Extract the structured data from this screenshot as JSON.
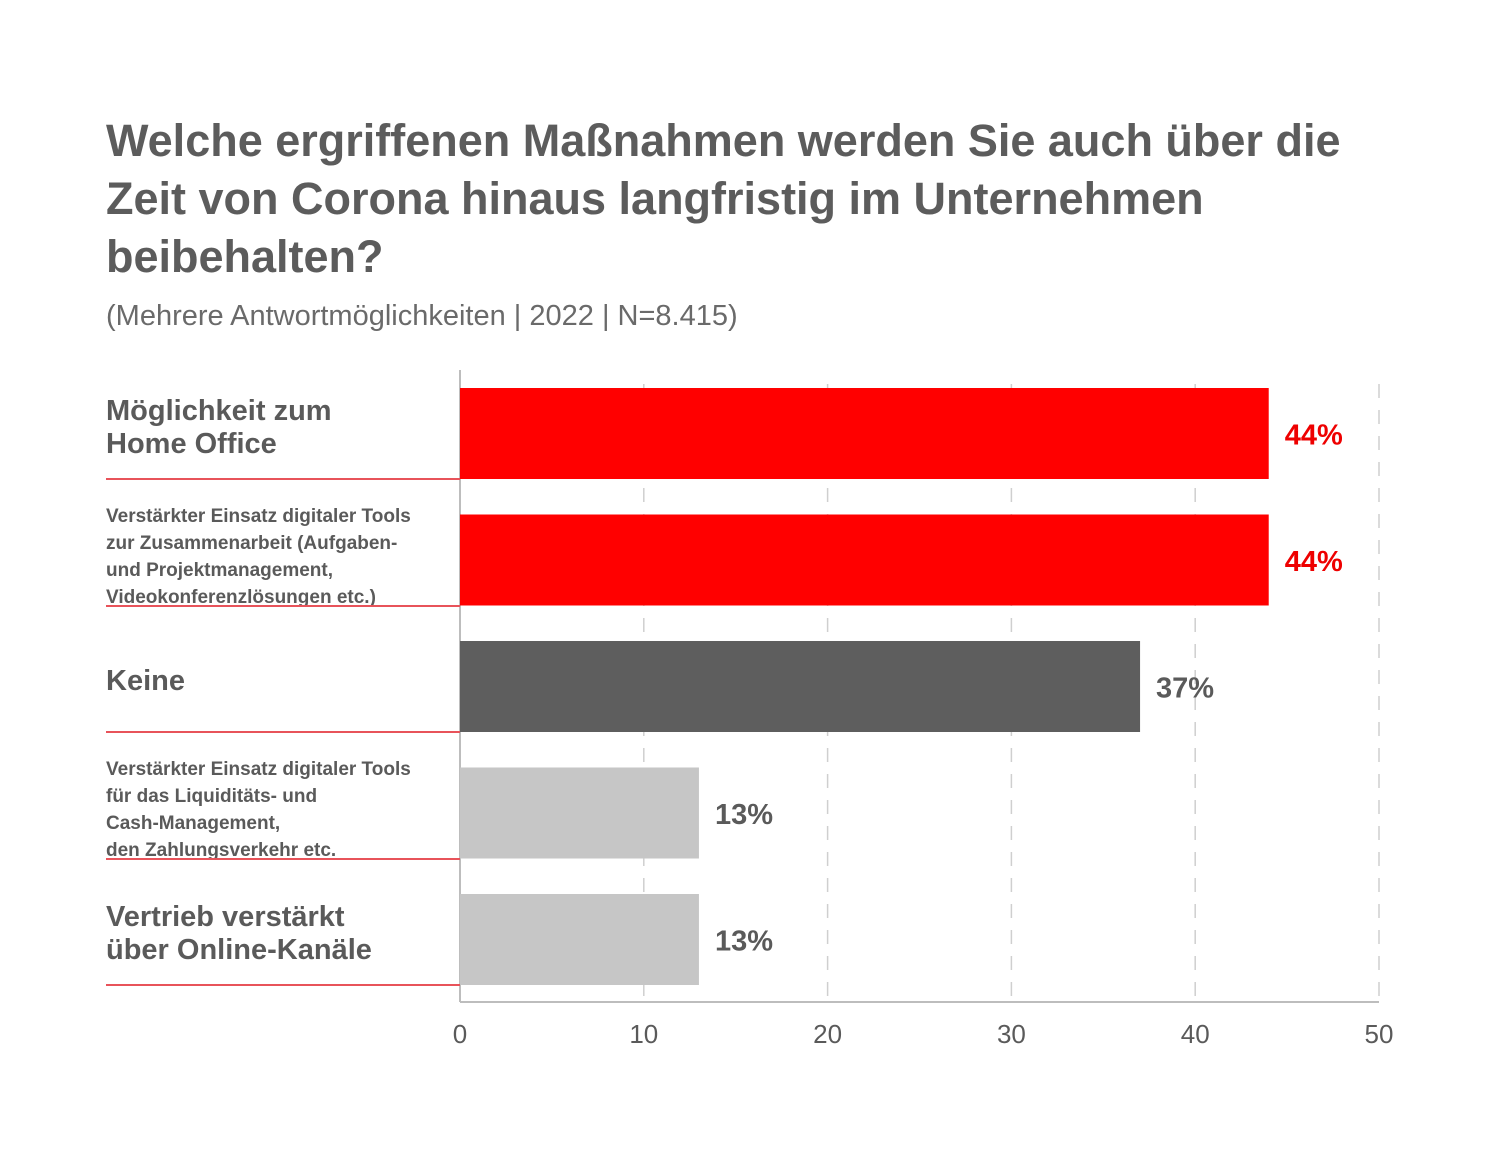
{
  "title": "Welche ergriffenen Maßnahmen werden Sie auch über die Zeit von Corona hinaus langfristig im Unternehmen beibehalten?",
  "subtitle": "(Mehrere Antwortmöglichkeiten | 2022 | N=8.415)",
  "colors": {
    "highlight": "#ff0000",
    "dark": "#5e5e5e",
    "light": "#c6c6c6",
    "separator": "#e8535a",
    "grid": "#cfcfcf",
    "axis": "#bdbdbd",
    "text": "#5a5a5a"
  },
  "chart_data": {
    "type": "bar",
    "orientation": "horizontal",
    "categories": [
      "Möglichkeit zum\nHome Office",
      "Verstärkter Einsatz digitaler Tools\nzur Zusammenarbeit (Aufgaben-\nund Projektmanagement,\nVideokonferenzlösungen etc.)",
      "Keine",
      "Verstärkter Einsatz digitaler Tools\nfür das Liquiditäts- und\nCash-Management,\nden Zahlungsverkehr etc.",
      "Vertrieb verstärkt\nüber Online-Kanäle"
    ],
    "values": [
      44,
      44,
      37,
      13,
      13
    ],
    "value_labels": [
      "44%",
      "44%",
      "37%",
      "13%",
      "13%"
    ],
    "bar_colors": [
      "#ff0000",
      "#ff0000",
      "#5e5e5e",
      "#c6c6c6",
      "#c6c6c6"
    ],
    "label_colors": [
      "#ee0000",
      "#ee0000",
      "#5a5a5a",
      "#5a5a5a",
      "#5a5a5a"
    ],
    "xlim": [
      0,
      50
    ],
    "xticks": [
      0,
      10,
      20,
      30,
      40,
      50
    ],
    "grid": "dashed vertical"
  }
}
